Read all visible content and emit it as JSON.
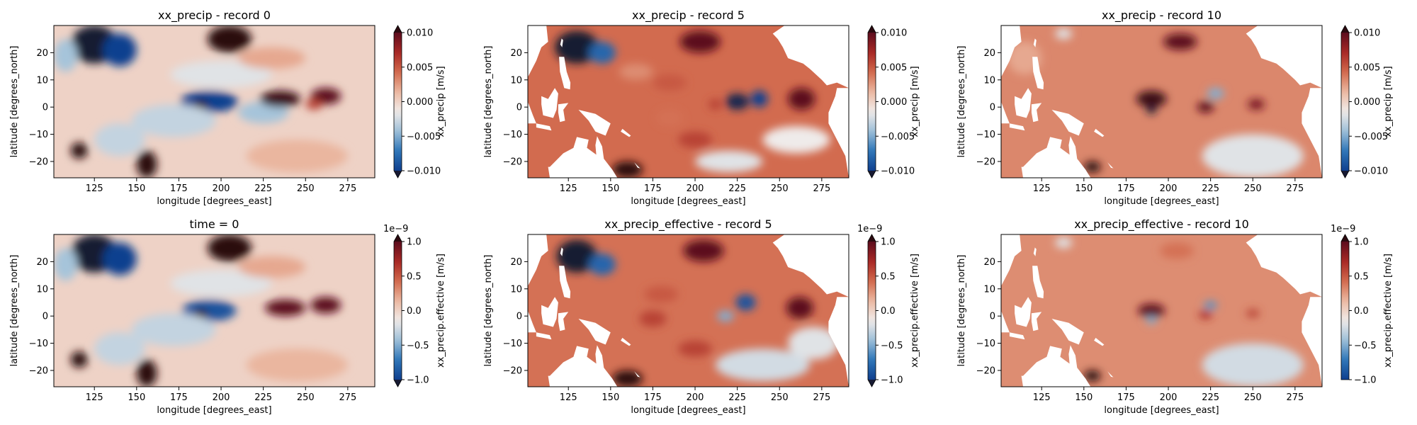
{
  "figure": {
    "colormap": "balance",
    "colormap_stops": [
      "#171a33",
      "#0f3f8f",
      "#2e76b8",
      "#9ebfd8",
      "#f1ecea",
      "#ebb8a1",
      "#d1694c",
      "#a82825",
      "#5c0d1e",
      "#2c0a10"
    ],
    "masked_land_color": "#ffffff"
  },
  "chart_data": [
    {
      "type": "heatmap",
      "title": "xx_precip - record 0",
      "xlabel": "longitude [degrees_east]",
      "ylabel": "latitude [degrees_north]",
      "xlim": [
        101,
        291
      ],
      "ylim": [
        -26,
        30
      ],
      "xticks": [
        125,
        150,
        175,
        200,
        225,
        250,
        275
      ],
      "yticks": [
        -20,
        -10,
        0,
        10,
        20
      ],
      "colorbar": {
        "label": "xx_precip [m/s]",
        "vmin": -0.01,
        "vmax": 0.01,
        "ticks": [
          "−0.010",
          "−0.005",
          "0.000",
          "0.005",
          "0.010"
        ],
        "multiplier": "",
        "extend": "both"
      },
      "field": {
        "baseline": 0.0,
        "land_mask": false,
        "features": [
          {
            "lon": 125,
            "lat": 23,
            "value": -0.014,
            "rx": 14,
            "ry": 7
          },
          {
            "lon": 140,
            "lat": 21,
            "value": -0.01,
            "rx": 10,
            "ry": 6
          },
          {
            "lon": 108,
            "lat": 19,
            "value": -0.004,
            "rx": 7,
            "ry": 6
          },
          {
            "lon": 205,
            "lat": 25,
            "value": 0.014,
            "rx": 13,
            "ry": 5
          },
          {
            "lon": 193,
            "lat": 2,
            "value": -0.01,
            "rx": 17,
            "ry": 4
          },
          {
            "lon": 188,
            "lat": 0.5,
            "value": 0.014,
            "rx": 4,
            "ry": 2
          },
          {
            "lon": 225,
            "lat": -2,
            "value": -0.004,
            "rx": 15,
            "ry": 4
          },
          {
            "lon": 235,
            "lat": 3,
            "value": 0.012,
            "rx": 12,
            "ry": 3
          },
          {
            "lon": 262,
            "lat": 4,
            "value": 0.01,
            "rx": 9,
            "ry": 3
          },
          {
            "lon": 255,
            "lat": 1,
            "value": 0.006,
            "rx": 5,
            "ry": 2
          },
          {
            "lon": 172,
            "lat": -5,
            "value": -0.003,
            "rx": 25,
            "ry": 6
          },
          {
            "lon": 200,
            "lat": 12,
            "value": -0.002,
            "rx": 30,
            "ry": 5
          },
          {
            "lon": 156,
            "lat": -21,
            "value": 0.014,
            "rx": 6,
            "ry": 5
          },
          {
            "lon": 116,
            "lat": -16,
            "value": 0.014,
            "rx": 5,
            "ry": 3
          },
          {
            "lon": 140,
            "lat": -12,
            "value": -0.003,
            "rx": 15,
            "ry": 6
          },
          {
            "lon": 245,
            "lat": -18,
            "value": 0.0015,
            "rx": 30,
            "ry": 6
          },
          {
            "lon": 230,
            "lat": 18,
            "value": 0.002,
            "rx": 20,
            "ry": 4
          }
        ]
      }
    },
    {
      "type": "heatmap",
      "title": "xx_precip - record 5",
      "xlabel": "longitude [degrees_east]",
      "ylabel": "latitude [degrees_north]",
      "xlim": [
        101,
        291
      ],
      "ylim": [
        -26,
        30
      ],
      "xticks": [
        125,
        150,
        175,
        200,
        225,
        250,
        275
      ],
      "yticks": [
        -20,
        -10,
        0,
        10,
        20
      ],
      "colorbar": {
        "label": "xx_precip [m/s]",
        "vmin": -0.01,
        "vmax": 0.01,
        "ticks": [
          "−0.010",
          "−0.005",
          "0.000",
          "0.005",
          "0.010"
        ],
        "multiplier": "",
        "extend": "both"
      },
      "field": {
        "baseline": 0.0042,
        "land_mask": true,
        "features": [
          {
            "lon": 130,
            "lat": 22,
            "value": -0.018,
            "rx": 13,
            "ry": 6
          },
          {
            "lon": 145,
            "lat": 20,
            "value": -0.008,
            "rx": 8,
            "ry": 4
          },
          {
            "lon": 203,
            "lat": 24,
            "value": 0.01,
            "rx": 12,
            "ry": 4
          },
          {
            "lon": 225,
            "lat": 2,
            "value": -0.012,
            "rx": 7,
            "ry": 3
          },
          {
            "lon": 238,
            "lat": 3,
            "value": -0.01,
            "rx": 5,
            "ry": 3
          },
          {
            "lon": 212,
            "lat": 1,
            "value": 0.006,
            "rx": 4,
            "ry": 2
          },
          {
            "lon": 263,
            "lat": 3,
            "value": 0.01,
            "rx": 8,
            "ry": 4
          },
          {
            "lon": 185,
            "lat": 9,
            "value": 0.005,
            "rx": 10,
            "ry": 3
          },
          {
            "lon": 165,
            "lat": 13,
            "value": 0.003,
            "rx": 10,
            "ry": 3
          },
          {
            "lon": 200,
            "lat": -12,
            "value": 0.006,
            "rx": 10,
            "ry": 3
          },
          {
            "lon": 160,
            "lat": -23,
            "value": 0.014,
            "rx": 9,
            "ry": 3
          },
          {
            "lon": 185,
            "lat": -4,
            "value": 0.004,
            "rx": 8,
            "ry": 3
          },
          {
            "lon": 220,
            "lat": -20,
            "value": -0.002,
            "rx": 20,
            "ry": 4
          },
          {
            "lon": 260,
            "lat": -12,
            "value": -0.0015,
            "rx": 20,
            "ry": 5
          }
        ]
      }
    },
    {
      "type": "heatmap",
      "title": "xx_precip - record 10",
      "xlabel": "longitude [degrees_east]",
      "ylabel": "latitude [degrees_north]",
      "xlim": [
        101,
        291
      ],
      "ylim": [
        -26,
        30
      ],
      "xticks": [
        125,
        150,
        175,
        200,
        225,
        250,
        275
      ],
      "yticks": [
        -20,
        -10,
        0,
        10,
        20
      ],
      "colorbar": {
        "label": "xx_precip [m/s]",
        "vmin": -0.01,
        "vmax": 0.01,
        "ticks": [
          "−0.010",
          "−0.005",
          "0.000",
          "0.005",
          "0.010"
        ],
        "multiplier": "",
        "extend": "both"
      },
      "field": {
        "baseline": 0.0032,
        "land_mask": true,
        "features": [
          {
            "lon": 138,
            "lat": 27,
            "value": -0.002,
            "rx": 5,
            "ry": 2
          },
          {
            "lon": 207,
            "lat": 24,
            "value": 0.01,
            "rx": 10,
            "ry": 3
          },
          {
            "lon": 190,
            "lat": 3,
            "value": 0.012,
            "rx": 9,
            "ry": 3
          },
          {
            "lon": 190,
            "lat": -1,
            "value": -0.014,
            "rx": 3,
            "ry": 1.5
          },
          {
            "lon": 222,
            "lat": 0,
            "value": 0.01,
            "rx": 5,
            "ry": 2
          },
          {
            "lon": 228,
            "lat": 5,
            "value": -0.005,
            "rx": 5,
            "ry": 2
          },
          {
            "lon": 252,
            "lat": 1,
            "value": 0.009,
            "rx": 5,
            "ry": 2
          },
          {
            "lon": 155,
            "lat": -22,
            "value": 0.014,
            "rx": 5,
            "ry": 2
          },
          {
            "lon": 250,
            "lat": -18,
            "value": -0.002,
            "rx": 30,
            "ry": 8
          },
          {
            "lon": 115,
            "lat": 18,
            "value": 0.002,
            "rx": 10,
            "ry": 6
          }
        ]
      }
    },
    {
      "type": "heatmap",
      "title": "time = 0",
      "xlabel": "longitude [degrees_east]",
      "ylabel": "latitude [degrees_north]",
      "xlim": [
        101,
        291
      ],
      "ylim": [
        -26,
        30
      ],
      "xticks": [
        125,
        150,
        175,
        200,
        225,
        250,
        275
      ],
      "yticks": [
        -20,
        -10,
        0,
        10,
        20
      ],
      "colorbar": {
        "label": "xx_precip.effective [m/s]",
        "vmin": -1.0,
        "vmax": 1.0,
        "ticks": [
          "−1.0",
          "−0.5",
          "0.0",
          "0.5",
          "1.0"
        ],
        "multiplier": "1e−9",
        "extend": "both"
      },
      "field": {
        "baseline": 0.0,
        "land_mask": false,
        "features": [
          {
            "lon": 125,
            "lat": 23,
            "value": -1.4,
            "rx": 14,
            "ry": 7
          },
          {
            "lon": 140,
            "lat": 21,
            "value": -1.0,
            "rx": 10,
            "ry": 6
          },
          {
            "lon": 108,
            "lat": 19,
            "value": -0.4,
            "rx": 7,
            "ry": 6
          },
          {
            "lon": 205,
            "lat": 25,
            "value": 1.4,
            "rx": 13,
            "ry": 5
          },
          {
            "lon": 193,
            "lat": 2,
            "value": -0.9,
            "rx": 16,
            "ry": 4
          },
          {
            "lon": 188,
            "lat": 0.5,
            "value": 1.4,
            "rx": 4,
            "ry": 2
          },
          {
            "lon": 238,
            "lat": 3,
            "value": 1.0,
            "rx": 12,
            "ry": 3
          },
          {
            "lon": 262,
            "lat": 4,
            "value": 1.0,
            "rx": 9,
            "ry": 3
          },
          {
            "lon": 172,
            "lat": -5,
            "value": -0.3,
            "rx": 25,
            "ry": 6
          },
          {
            "lon": 200,
            "lat": 12,
            "value": -0.2,
            "rx": 30,
            "ry": 5
          },
          {
            "lon": 156,
            "lat": -21,
            "value": 1.4,
            "rx": 6,
            "ry": 5
          },
          {
            "lon": 116,
            "lat": -16,
            "value": 1.4,
            "rx": 5,
            "ry": 3
          },
          {
            "lon": 140,
            "lat": -12,
            "value": -0.3,
            "rx": 15,
            "ry": 6
          },
          {
            "lon": 245,
            "lat": -18,
            "value": 0.15,
            "rx": 30,
            "ry": 6
          },
          {
            "lon": 230,
            "lat": 18,
            "value": 0.2,
            "rx": 20,
            "ry": 4
          }
        ]
      }
    },
    {
      "type": "heatmap",
      "title": "xx_precip_effective - record 5",
      "xlabel": "longitude [degrees_east]",
      "ylabel": "latitude [degrees_north]",
      "xlim": [
        101,
        291
      ],
      "ylim": [
        -26,
        30
      ],
      "xticks": [
        125,
        150,
        175,
        200,
        225,
        250,
        275
      ],
      "yticks": [
        -20,
        -10,
        0,
        10,
        20
      ],
      "colorbar": {
        "label": "xx_precip.effective [m/s]",
        "vmin": -1.0,
        "vmax": 1.0,
        "ticks": [
          "−1.0",
          "−0.5",
          "0.0",
          "0.5",
          "1.0"
        ],
        "multiplier": "1e−9",
        "extend": "both"
      },
      "field": {
        "baseline": 0.4,
        "land_mask": true,
        "features": [
          {
            "lon": 130,
            "lat": 22,
            "value": -1.8,
            "rx": 12,
            "ry": 6
          },
          {
            "lon": 145,
            "lat": 19,
            "value": -0.8,
            "rx": 8,
            "ry": 4
          },
          {
            "lon": 205,
            "lat": 24,
            "value": 1.0,
            "rx": 12,
            "ry": 4
          },
          {
            "lon": 230,
            "lat": 5,
            "value": -0.9,
            "rx": 6,
            "ry": 3
          },
          {
            "lon": 218,
            "lat": 0,
            "value": -0.5,
            "rx": 5,
            "ry": 2
          },
          {
            "lon": 262,
            "lat": 3,
            "value": 1.0,
            "rx": 8,
            "ry": 4
          },
          {
            "lon": 180,
            "lat": 8,
            "value": 0.5,
            "rx": 10,
            "ry": 3
          },
          {
            "lon": 200,
            "lat": -12,
            "value": 0.6,
            "rx": 10,
            "ry": 3
          },
          {
            "lon": 160,
            "lat": -23,
            "value": 1.4,
            "rx": 9,
            "ry": 3
          },
          {
            "lon": 175,
            "lat": -1,
            "value": 0.6,
            "rx": 8,
            "ry": 3
          },
          {
            "lon": 240,
            "lat": -18,
            "value": -0.25,
            "rx": 28,
            "ry": 6
          },
          {
            "lon": 270,
            "lat": -10,
            "value": -0.2,
            "rx": 15,
            "ry": 6
          }
        ]
      }
    },
    {
      "type": "heatmap",
      "title": "xx_precip_effective - record 10",
      "xlabel": "longitude [degrees_east]",
      "ylabel": "latitude [degrees_north]",
      "xlim": [
        101,
        291
      ],
      "ylim": [
        -26,
        30
      ],
      "xticks": [
        125,
        150,
        175,
        200,
        225,
        250,
        275
      ],
      "yticks": [
        -20,
        -10,
        0,
        10,
        20
      ],
      "colorbar": {
        "label": "xx_precip.effective [m/s]",
        "vmin": -1.0,
        "vmax": 1.0,
        "ticks": [
          "−1.0",
          "−0.5",
          "0.0",
          "0.5",
          "1.0"
        ],
        "multiplier": "1e−9",
        "extend": "max"
      },
      "field": {
        "baseline": 0.3,
        "land_mask": true,
        "features": [
          {
            "lon": 138,
            "lat": 27,
            "value": -0.2,
            "rx": 5,
            "ry": 2
          },
          {
            "lon": 190,
            "lat": 2,
            "value": 1.0,
            "rx": 8,
            "ry": 2.5
          },
          {
            "lon": 190,
            "lat": -1.5,
            "value": -0.5,
            "rx": 3,
            "ry": 1.5
          },
          {
            "lon": 225,
            "lat": 4,
            "value": -0.6,
            "rx": 4,
            "ry": 1.5
          },
          {
            "lon": 222,
            "lat": 0.5,
            "value": 0.7,
            "rx": 4,
            "ry": 1.5
          },
          {
            "lon": 250,
            "lat": 1,
            "value": 0.6,
            "rx": 4,
            "ry": 1.5
          },
          {
            "lon": 155,
            "lat": -22,
            "value": 1.4,
            "rx": 5,
            "ry": 2
          },
          {
            "lon": 250,
            "lat": -18,
            "value": -0.25,
            "rx": 30,
            "ry": 8
          },
          {
            "lon": 205,
            "lat": 24,
            "value": 0.4,
            "rx": 10,
            "ry": 3
          }
        ]
      }
    }
  ]
}
